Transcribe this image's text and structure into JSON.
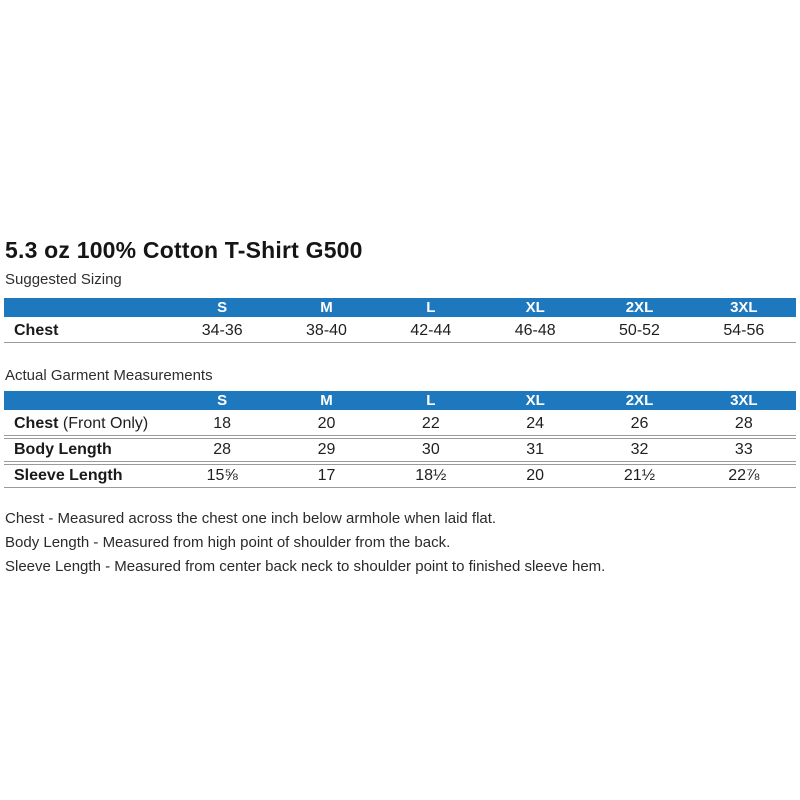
{
  "page": {
    "title": "5.3 oz 100% Cotton T-Shirt G500"
  },
  "colors": {
    "header_bg": "#1E78BE",
    "header_text": "#FFFFFF"
  },
  "suggested_sizing": {
    "label": "Suggested Sizing",
    "columns": [
      "S",
      "M",
      "L",
      "XL",
      "2XL",
      "3XL"
    ],
    "rows": [
      {
        "label": "Chest",
        "label_suffix": "",
        "values": [
          "34-36",
          "38-40",
          "42-44",
          "46-48",
          "50-52",
          "54-56"
        ]
      }
    ]
  },
  "actual_measurements": {
    "label": "Actual Garment Measurements",
    "columns": [
      "S",
      "M",
      "L",
      "XL",
      "2XL",
      "3XL"
    ],
    "rows": [
      {
        "label": "Chest",
        "label_suffix": " (Front Only)",
        "values": [
          "18",
          "20",
          "22",
          "24",
          "26",
          "28"
        ]
      },
      {
        "label": "Body Length",
        "label_suffix": "",
        "values": [
          "28",
          "29",
          "30",
          "31",
          "32",
          "33"
        ]
      },
      {
        "label": "Sleeve Length",
        "label_suffix": "",
        "values": [
          "15⅝",
          "17",
          "18½",
          "20",
          "21½",
          "22⅞"
        ]
      }
    ]
  },
  "notes": [
    "Chest - Measured across the chest one inch below armhole when laid flat.",
    "Body Length - Measured from high point of shoulder from the back.",
    "Sleeve Length - Measured from center back neck to shoulder point to finished sleeve hem."
  ]
}
